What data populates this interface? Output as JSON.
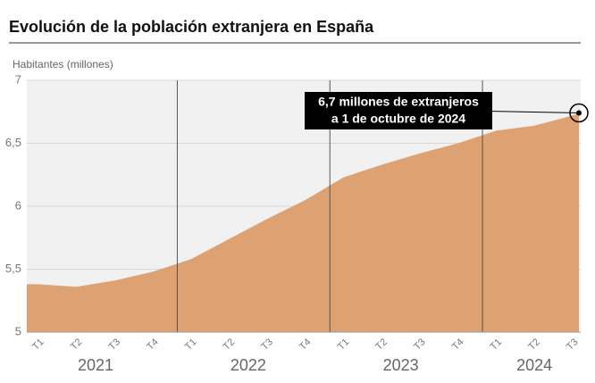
{
  "chart_data": {
    "type": "area",
    "title": "Evolución de la población extranjera en España",
    "y_label": "Habitantes (millones)",
    "groups": [
      {
        "name": "2021",
        "categories": [
          "T1",
          "T2",
          "T3",
          "T4"
        ]
      },
      {
        "name": "2022",
        "categories": [
          "T1",
          "T2",
          "T3",
          "T4"
        ]
      },
      {
        "name": "2023",
        "categories": [
          "T1",
          "T2",
          "T3",
          "T4"
        ]
      },
      {
        "name": "2024",
        "categories": [
          "T1",
          "T2",
          "T3"
        ]
      }
    ],
    "values": [
      5.38,
      5.36,
      5.41,
      5.48,
      5.58,
      5.74,
      5.9,
      6.05,
      6.23,
      6.33,
      6.42,
      6.5,
      6.6,
      6.64,
      6.72
    ],
    "color": "#dea172",
    "ylim": [
      5,
      7
    ],
    "yticks": [
      {
        "value": 5,
        "label": "5"
      },
      {
        "value": 5.5,
        "label": "5,5"
      },
      {
        "value": 6,
        "label": "6"
      },
      {
        "value": 6.5,
        "label": "6,5"
      },
      {
        "value": 7,
        "label": "7"
      }
    ],
    "grid": true,
    "annotation": [
      "6,7 millones de extranjeros",
      "a 1 de octubre de 2024"
    ]
  }
}
